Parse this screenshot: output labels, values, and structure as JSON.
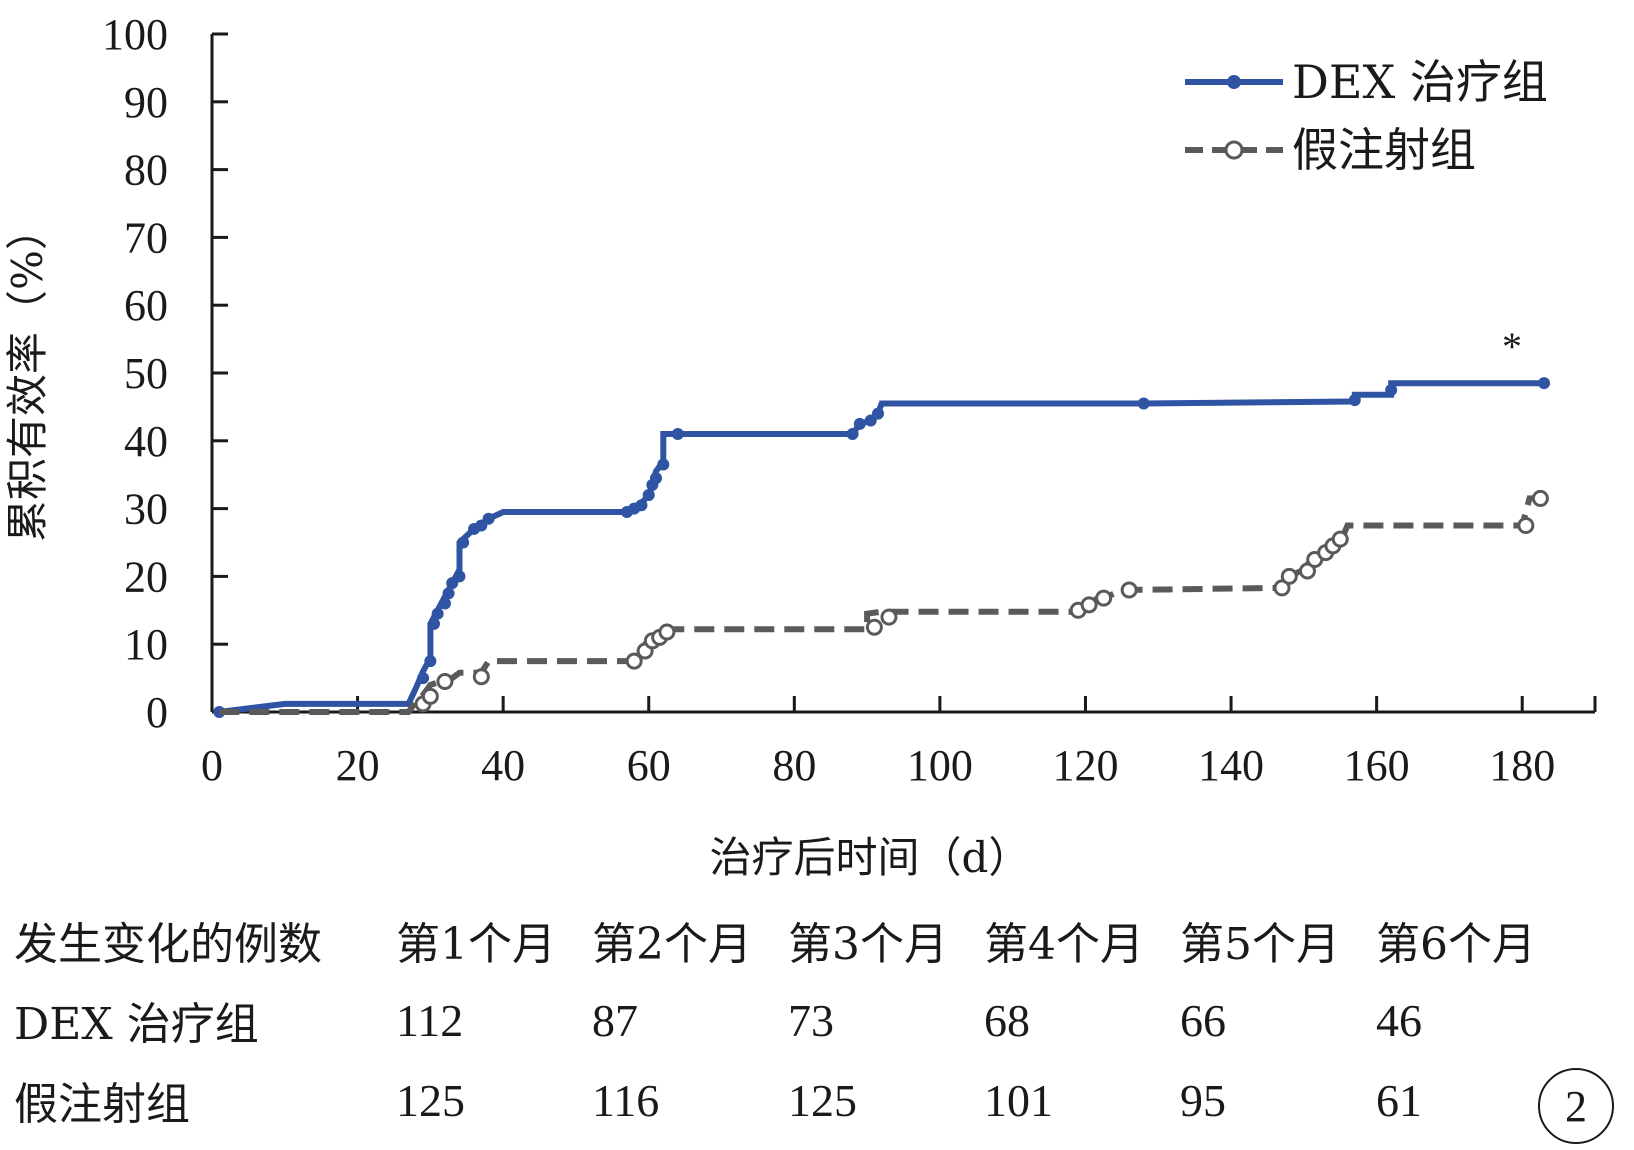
{
  "chart_data": {
    "type": "line",
    "title": "",
    "xlabel": "治疗后时间（d）",
    "ylabel": "累积有效率（%）",
    "xlim": [
      0,
      190
    ],
    "ylim": [
      0,
      100
    ],
    "xticks": [
      "0",
      "20",
      "40",
      "60",
      "80",
      "100",
      "120",
      "140",
      "160",
      "180"
    ],
    "yticks": [
      "0",
      "10",
      "20",
      "30",
      "40",
      "50",
      "60",
      "70",
      "80",
      "90",
      "100"
    ],
    "legend_position": "top-right",
    "significance_marker": "*",
    "colors": {
      "dex": "#2f54a3",
      "sham": "#5a5a5a"
    },
    "series": [
      {
        "name": "DEX 治疗组",
        "style": "solid",
        "color": "#2f54a3",
        "points": [
          [
            1,
            0
          ],
          [
            10,
            1.2
          ],
          [
            27,
            1.2
          ],
          [
            28,
            3.5
          ],
          [
            29,
            6
          ],
          [
            30,
            8
          ],
          [
            30,
            13
          ],
          [
            31,
            15
          ],
          [
            32,
            17
          ],
          [
            33,
            19
          ],
          [
            34,
            21
          ],
          [
            34,
            25
          ],
          [
            35,
            26
          ],
          [
            36,
            27
          ],
          [
            37,
            27.5
          ],
          [
            38,
            28.5
          ],
          [
            40,
            29.5
          ],
          [
            57,
            29.5
          ],
          [
            58,
            30
          ],
          [
            59,
            30.8
          ],
          [
            60,
            32
          ],
          [
            60.5,
            33.5
          ],
          [
            61,
            35.5
          ],
          [
            62,
            37
          ],
          [
            62,
            41
          ],
          [
            64,
            41
          ],
          [
            88,
            41
          ],
          [
            89,
            42.5
          ],
          [
            90.5,
            43
          ],
          [
            91.5,
            44
          ],
          [
            92,
            45.5
          ],
          [
            128,
            45.5
          ],
          [
            157,
            45.8
          ],
          [
            157,
            46.8
          ],
          [
            162,
            46.8
          ],
          [
            162,
            48.5
          ],
          [
            183,
            48.5
          ]
        ],
        "markers": [
          [
            1,
            0
          ],
          [
            29,
            5
          ],
          [
            30,
            7.5
          ],
          [
            30.5,
            13
          ],
          [
            31,
            14.5
          ],
          [
            32,
            16
          ],
          [
            32.5,
            17.5
          ],
          [
            33,
            19
          ],
          [
            34,
            20
          ],
          [
            34.5,
            25
          ],
          [
            36,
            27
          ],
          [
            37,
            27.5
          ],
          [
            38,
            28.5
          ],
          [
            57,
            29.5
          ],
          [
            58,
            30
          ],
          [
            59,
            30.5
          ],
          [
            60,
            32
          ],
          [
            60.5,
            33.5
          ],
          [
            61,
            34.5
          ],
          [
            62,
            36.5
          ],
          [
            64,
            41
          ],
          [
            88,
            41
          ],
          [
            89,
            42.5
          ],
          [
            90.5,
            43
          ],
          [
            91.5,
            44
          ],
          [
            128,
            45.5
          ],
          [
            157,
            46
          ],
          [
            162,
            47.5
          ],
          [
            183,
            48.5
          ]
        ]
      },
      {
        "name": "假注射组",
        "style": "dashed",
        "color": "#5a5a5a",
        "points": [
          [
            1,
            0
          ],
          [
            27,
            0
          ],
          [
            28,
            1.5
          ],
          [
            29,
            2.5
          ],
          [
            30,
            4
          ],
          [
            33,
            5
          ],
          [
            34,
            5.8
          ],
          [
            37,
            5.8
          ],
          [
            38,
            7.5
          ],
          [
            57,
            7.5
          ],
          [
            58,
            8
          ],
          [
            59,
            9.5
          ],
          [
            60,
            10.5
          ],
          [
            61,
            11.5
          ],
          [
            62,
            12.2
          ],
          [
            90,
            12.2
          ],
          [
            90,
            14.5
          ],
          [
            92,
            14.8
          ],
          [
            119,
            14.8
          ],
          [
            120,
            15.5
          ],
          [
            121,
            16.5
          ],
          [
            123,
            17
          ],
          [
            125,
            18
          ],
          [
            147,
            18.3
          ],
          [
            148,
            20
          ],
          [
            150,
            21
          ],
          [
            151,
            22.5
          ],
          [
            153,
            23.5
          ],
          [
            154,
            24.5
          ],
          [
            155,
            25
          ],
          [
            156,
            27.5
          ],
          [
            180,
            27.5
          ],
          [
            181,
            31.5
          ],
          [
            182,
            31.5
          ]
        ],
        "markers": [
          [
            29,
            1.2
          ],
          [
            30,
            2.3
          ],
          [
            32,
            4.5
          ],
          [
            37,
            5.2
          ],
          [
            58,
            7.5
          ],
          [
            59.5,
            9
          ],
          [
            60.5,
            10.5
          ],
          [
            61.5,
            11
          ],
          [
            62.5,
            11.8
          ],
          [
            91,
            12.5
          ],
          [
            93,
            14
          ],
          [
            119,
            15
          ],
          [
            120.5,
            15.8
          ],
          [
            122.5,
            16.8
          ],
          [
            126,
            18
          ],
          [
            147,
            18.3
          ],
          [
            148,
            20
          ],
          [
            150.5,
            20.8
          ],
          [
            151.5,
            22.5
          ],
          [
            153,
            23.5
          ],
          [
            154,
            24.5
          ],
          [
            155,
            25.5
          ],
          [
            180.5,
            27.5
          ],
          [
            182.5,
            31.5
          ]
        ]
      }
    ]
  },
  "table": {
    "header": [
      "发生变化的例数",
      "第1个月",
      "第2个月",
      "第3个月",
      "第4个月",
      "第5个月",
      "第6个月"
    ],
    "rows": [
      {
        "label": "DEX 治疗组",
        "values": [
          "112",
          "87",
          "73",
          "68",
          "66",
          "46"
        ]
      },
      {
        "label": "假注射组",
        "values": [
          "125",
          "116",
          "125",
          "101",
          "95",
          "61"
        ]
      }
    ]
  },
  "panel_label": "2"
}
